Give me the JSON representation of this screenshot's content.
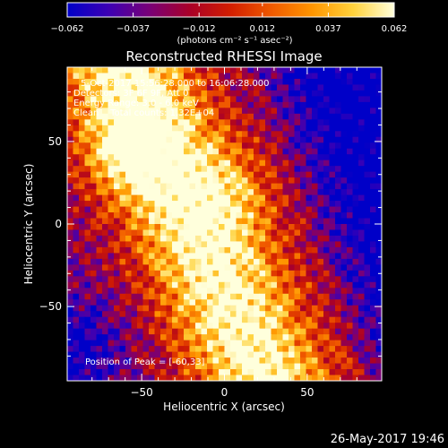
{
  "chart_data": {
    "type": "heatmap",
    "title": "Reconstructed RHESSI Image",
    "xlabel": "Heliocentric X (arcsec)",
    "ylabel": "Heliocentric Y (arcsec)",
    "xlim": [
      -95,
      95
    ],
    "ylim": [
      -95,
      95
    ],
    "xticks": [
      {
        "value": -50,
        "label": "−50"
      },
      {
        "value": 0,
        "label": "0"
      },
      {
        "value": 50,
        "label": "50"
      }
    ],
    "yticks": [
      {
        "value": 50,
        "label": "50"
      },
      {
        "value": 0,
        "label": "0"
      },
      {
        "value": -50,
        "label": "−50"
      }
    ],
    "colorbar": {
      "min": -0.062,
      "max": 0.062,
      "ticks": [
        {
          "value": -0.062,
          "label": "−0.062"
        },
        {
          "value": -0.037,
          "label": "−0.037"
        },
        {
          "value": -0.012,
          "label": "−0.012"
        },
        {
          "value": 0.012,
          "label": "0.012"
        },
        {
          "value": 0.037,
          "label": "0.037"
        },
        {
          "value": 0.062,
          "label": "0.062"
        }
      ],
      "unit_label": "(photons cm⁻² s⁻¹ asec⁻²)",
      "colormap": [
        "#0000c8",
        "#3c00b4",
        "#780078",
        "#aa0028",
        "#d21e00",
        "#f05a00",
        "#ff9600",
        "#ffd23c",
        "#ffffdc"
      ]
    },
    "annotations": [
      "5-Oct-2017 15:56:28.000 to 16:06:28.000",
      "Detectors: 3F 6F 9F, Att 0",
      "Energy Range: 3.0 - 6.0 keV",
      "Clean    Total counts: 1.32E+04"
    ],
    "peak_label": "Position of Peak = [-60,33]",
    "peak": {
      "x": -60,
      "y": 33
    },
    "grid": false
  },
  "footer": {
    "timestamp": "26-May-2017 19:46"
  }
}
